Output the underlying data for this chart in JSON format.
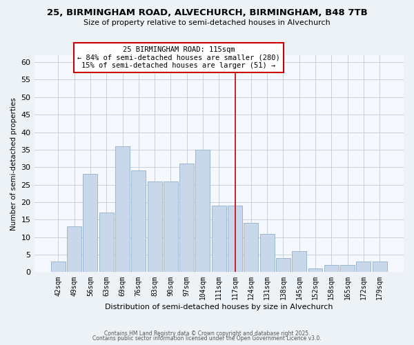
{
  "title_line1": "25, BIRMINGHAM ROAD, ALVECHURCH, BIRMINGHAM, B48 7TB",
  "title_line2": "Size of property relative to semi-detached houses in Alvechurch",
  "bar_labels": [
    "42sqm",
    "49sqm",
    "56sqm",
    "63sqm",
    "69sqm",
    "76sqm",
    "83sqm",
    "90sqm",
    "97sqm",
    "104sqm",
    "111sqm",
    "117sqm",
    "124sqm",
    "131sqm",
    "138sqm",
    "145sqm",
    "152sqm",
    "158sqm",
    "165sqm",
    "172sqm",
    "179sqm"
  ],
  "bar_values": [
    3,
    13,
    28,
    17,
    36,
    29,
    26,
    26,
    31,
    35,
    19,
    19,
    14,
    11,
    4,
    6,
    1,
    2,
    2,
    3,
    3
  ],
  "bar_color": "#c8d8ea",
  "bar_edgecolor": "#9ab8d0",
  "vline_index": 11,
  "vline_color": "#cc0000",
  "annotation_text": "25 BIRMINGHAM ROAD: 115sqm\n← 84% of semi-detached houses are smaller (280)\n15% of semi-detached houses are larger (51) →",
  "annotation_box_facecolor": "#ffffff",
  "annotation_box_edgecolor": "#cc0000",
  "xlabel": "Distribution of semi-detached houses by size in Alvechurch",
  "ylabel": "Number of semi-detached properties",
  "ylim": [
    0,
    62
  ],
  "yticks": [
    0,
    5,
    10,
    15,
    20,
    25,
    30,
    35,
    40,
    45,
    50,
    55,
    60
  ],
  "footnote1": "Contains HM Land Registry data © Crown copyright and database right 2025.",
  "footnote2": "Contains public sector information licensed under the Open Government Licence v3.0.",
  "background_color": "#edf2f7",
  "plot_background_color": "#f5f8fc",
  "grid_color": "#c0ccd8"
}
